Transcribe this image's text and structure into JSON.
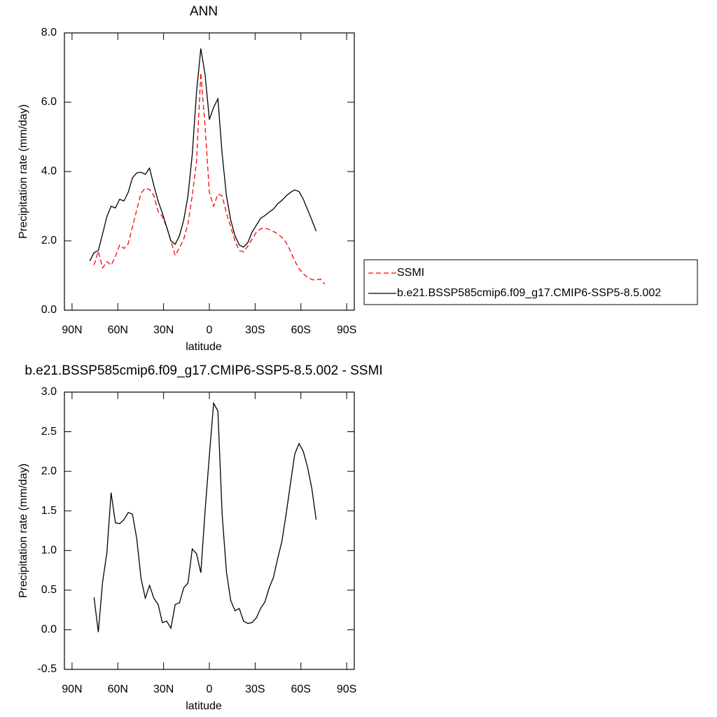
{
  "chart_data": [
    {
      "type": "line",
      "title": "ANN",
      "x_label": "latitude",
      "y_label": "Precipitation rate (mm/day)",
      "x": [
        78.4,
        75.6,
        72.8,
        70.0,
        67.2,
        64.4,
        61.6,
        58.8,
        56.0,
        53.2,
        50.4,
        47.6,
        44.8,
        42.0,
        39.2,
        36.4,
        33.6,
        30.8,
        28.0,
        25.2,
        22.4,
        19.6,
        16.8,
        14.0,
        11.2,
        8.4,
        5.6,
        2.8,
        0.0,
        -2.8,
        -5.6,
        -8.4,
        -11.2,
        -14.0,
        -16.8,
        -19.6,
        -22.4,
        -25.2,
        -28.0,
        -30.8,
        -33.6,
        -36.4,
        -39.2,
        -42.0,
        -44.8,
        -47.6,
        -50.4,
        -53.2,
        -56.0,
        -58.8,
        -61.6,
        -64.4,
        -67.2,
        -70.0,
        -72.8,
        -75.6
      ],
      "xlim": [
        95,
        -95
      ],
      "xticks": [
        {
          "value": 90,
          "label": "90N"
        },
        {
          "value": 60,
          "label": "60N"
        },
        {
          "value": 30,
          "label": "30N"
        },
        0,
        {
          "value": -30,
          "label": "30S"
        },
        {
          "value": -60,
          "label": "60S"
        },
        {
          "value": -90,
          "label": "90S"
        }
      ],
      "ylim": [
        0,
        8
      ],
      "yticks": [
        {
          "value": 0,
          "label": "0.0"
        },
        {
          "value": 2,
          "label": "2.0"
        },
        {
          "value": 4,
          "label": "4.0"
        },
        {
          "value": 6,
          "label": "6.0"
        },
        {
          "value": 8,
          "label": "8.0"
        }
      ],
      "legend": "right",
      "series": [
        {
          "name": "SSMI",
          "color": "#ff0000",
          "dashed": true,
          "values": [
            null,
            1.3,
            1.7,
            1.22,
            1.4,
            1.3,
            1.55,
            1.88,
            1.78,
            1.92,
            2.4,
            2.9,
            3.38,
            3.52,
            3.48,
            3.3,
            2.85,
            2.7,
            2.4,
            2.0,
            1.58,
            1.8,
            2.05,
            2.5,
            3.3,
            4.3,
            6.85,
            5.3,
            3.4,
            3.0,
            3.35,
            3.3,
            2.8,
            2.4,
            2.0,
            1.72,
            1.68,
            1.85,
            2.05,
            2.25,
            2.35,
            2.37,
            2.33,
            2.27,
            2.2,
            2.1,
            1.95,
            1.7,
            1.42,
            1.2,
            1.05,
            0.95,
            0.88,
            0.87,
            0.9,
            0.75
          ]
        },
        {
          "name": "b.e21.BSSP585cmip6.f09_g17.CMIP6-SSP5-8.5.002",
          "color": "#000000",
          "dashed": false,
          "values": [
            1.42,
            1.66,
            1.72,
            2.2,
            2.7,
            3.0,
            2.95,
            3.2,
            3.15,
            3.4,
            3.82,
            3.96,
            3.98,
            3.92,
            4.1,
            3.6,
            3.15,
            2.8,
            2.4,
            2.0,
            1.9,
            2.15,
            2.6,
            3.3,
            4.5,
            6.3,
            7.55,
            6.8,
            5.5,
            5.85,
            6.1,
            4.5,
            3.3,
            2.6,
            2.15,
            1.88,
            1.82,
            1.95,
            2.25,
            2.45,
            2.65,
            2.73,
            2.83,
            2.92,
            3.07,
            3.17,
            3.3,
            3.4,
            3.47,
            3.42,
            3.2,
            2.9,
            2.6,
            2.28,
            null,
            null
          ]
        }
      ]
    },
    {
      "type": "line",
      "title": "b.e21.BSSP585cmip6.f09_g17.CMIP6-SSP5-8.5.002 - SSMI",
      "x_label": "latitude",
      "y_label": "Precipitation rate (mm/day)",
      "x": [
        78.4,
        75.6,
        72.8,
        70.0,
        67.2,
        64.4,
        61.6,
        58.8,
        56.0,
        53.2,
        50.4,
        47.6,
        44.8,
        42.0,
        39.2,
        36.4,
        33.6,
        30.8,
        28.0,
        25.2,
        22.4,
        19.6,
        16.8,
        14.0,
        11.2,
        8.4,
        5.6,
        2.8,
        0.0,
        -2.8,
        -5.6,
        -8.4,
        -11.2,
        -14.0,
        -16.8,
        -19.6,
        -22.4,
        -25.2,
        -28.0,
        -30.8,
        -33.6,
        -36.4,
        -39.2,
        -42.0,
        -44.8,
        -47.6,
        -50.4,
        -53.2,
        -56.0,
        -58.8,
        -61.6,
        -64.4,
        -67.2,
        -70.0,
        -72.8,
        -75.6
      ],
      "xlim": [
        95,
        -95
      ],
      "xticks": [
        {
          "value": 90,
          "label": "90N"
        },
        {
          "value": 60,
          "label": "60N"
        },
        {
          "value": 30,
          "label": "30N"
        },
        0,
        {
          "value": -30,
          "label": "30S"
        },
        {
          "value": -60,
          "label": "60S"
        },
        {
          "value": -90,
          "label": "90S"
        }
      ],
      "ylim": [
        -0.5,
        3.0
      ],
      "yticks": [
        {
          "value": -0.5,
          "label": "-0.5"
        },
        {
          "value": 0,
          "label": "0.0"
        },
        0.5,
        {
          "value": 1,
          "label": "1.0"
        },
        1.5,
        {
          "value": 2,
          "label": "2.0"
        },
        2.5,
        {
          "value": 3,
          "label": "3.0"
        }
      ],
      "series": [
        {
          "color": "#000000",
          "dashed": false,
          "values": [
            null,
            0.41,
            -0.03,
            0.6,
            0.97,
            1.73,
            1.35,
            1.34,
            1.39,
            1.48,
            1.46,
            1.15,
            0.65,
            0.4,
            0.56,
            0.4,
            0.32,
            0.09,
            0.11,
            0.02,
            0.32,
            0.34,
            0.53,
            0.59,
            1.02,
            0.96,
            0.72,
            1.5,
            2.2,
            2.86,
            2.76,
            1.45,
            0.73,
            0.37,
            0.24,
            0.27,
            0.11,
            0.08,
            0.09,
            0.15,
            0.27,
            0.35,
            0.53,
            0.66,
            0.9,
            1.12,
            1.47,
            1.85,
            2.22,
            2.35,
            2.25,
            2.05,
            1.78,
            1.39,
            null,
            null
          ]
        }
      ]
    }
  ]
}
